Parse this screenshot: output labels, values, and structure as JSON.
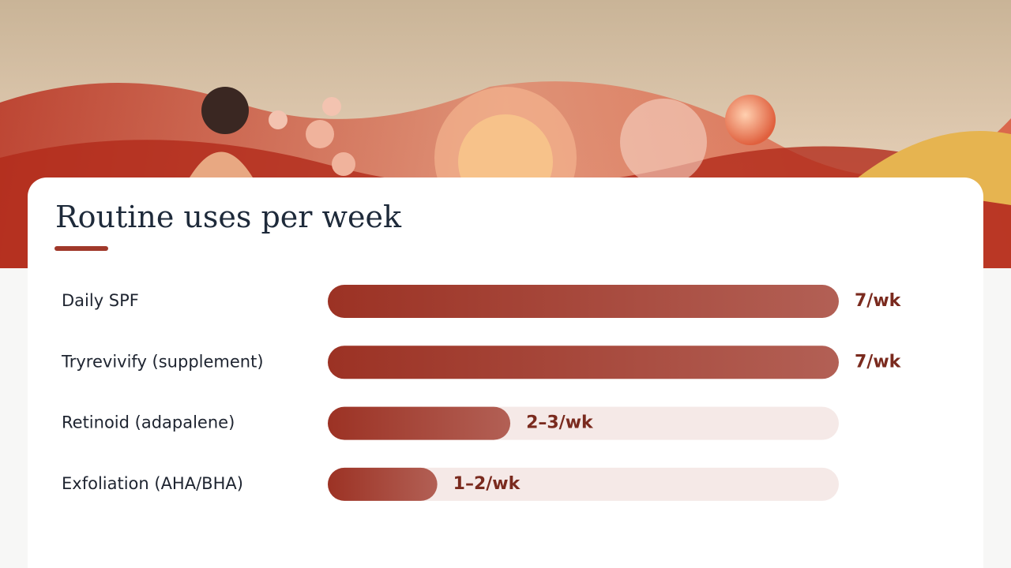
{
  "chart_data": {
    "type": "bar",
    "orientation": "horizontal",
    "title": "Routine uses per week",
    "categories": [
      "Daily SPF",
      "Tryrevivify (supplement)",
      "Retinoid (adapalene)",
      "Exfoliation (AHA/BHA)"
    ],
    "values": [
      7,
      7,
      2.5,
      1.5
    ],
    "value_labels": [
      "7/wk",
      "7/wk",
      "2–3/wk",
      "1–2/wk"
    ],
    "color": "#9c3224",
    "xlim": [
      0,
      7
    ]
  }
}
